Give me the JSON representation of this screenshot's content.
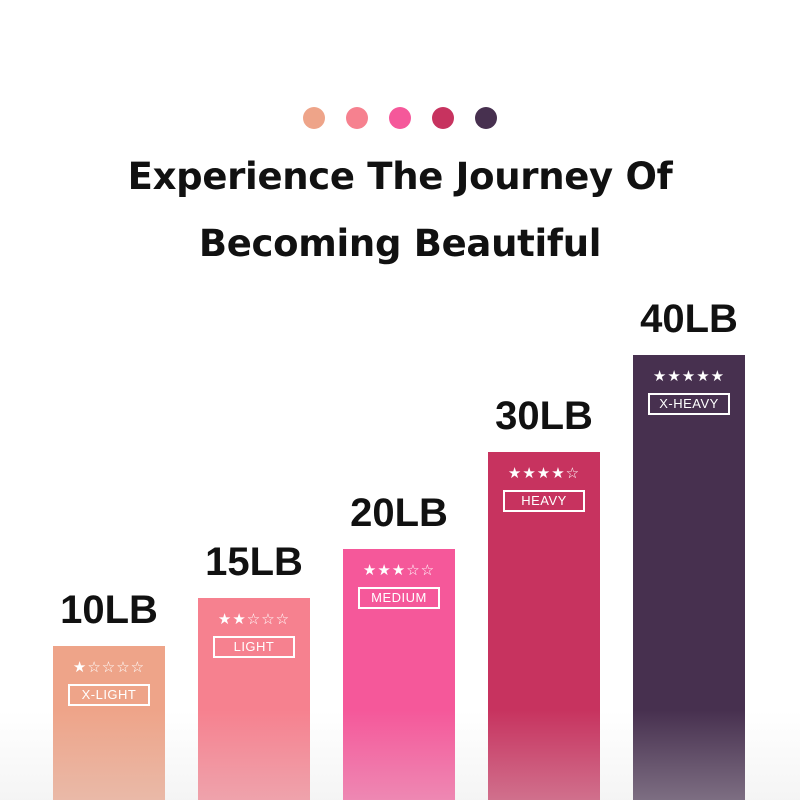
{
  "title_line1": "Experience The Journey Of",
  "title_line2": "Becoming Beautiful",
  "chart_data": {
    "type": "bar",
    "categories": [
      "10LB",
      "15LB",
      "20LB",
      "30LB",
      "40LB"
    ],
    "values": [
      10,
      15,
      20,
      30,
      40
    ],
    "levels": [
      "X-LIGHT",
      "LIGHT",
      "MEDIUM",
      "HEAVY",
      "X-HEAVY"
    ],
    "stars": [
      1,
      2,
      3,
      4,
      5
    ],
    "stars_max": 5,
    "colors": [
      "#eea489",
      "#f6818f",
      "#f5589a",
      "#c7335f",
      "#47304f"
    ]
  }
}
